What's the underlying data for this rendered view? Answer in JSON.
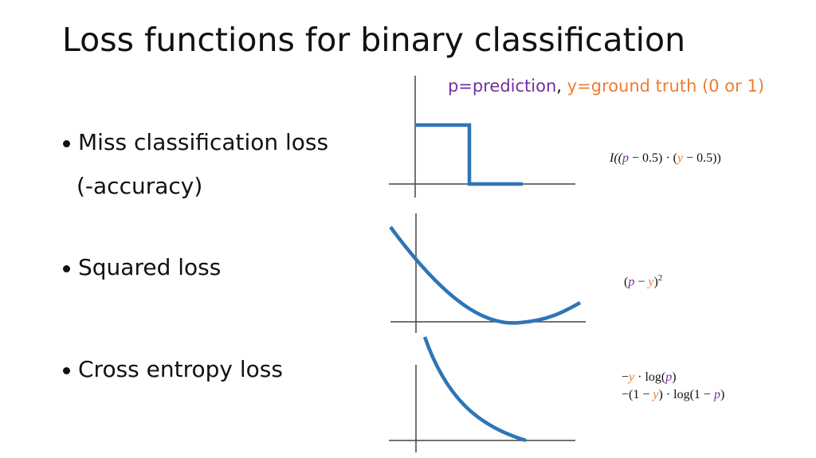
{
  "title": "Loss functions for binary classification",
  "legend": {
    "prediction": "p=prediction",
    "separator": ",",
    "ground_truth": "y=ground truth (0 or 1)"
  },
  "bullets": [
    {
      "lines": [
        "Miss classification loss",
        "(-accuracy)"
      ]
    },
    {
      "lines": [
        "Squared loss"
      ]
    },
    {
      "lines": [
        "Cross entropy loss"
      ]
    }
  ],
  "formulas": [
    {
      "lines": [
        [
          "I((",
          "p",
          " − 0.5) · (",
          "y",
          " − 0.5))"
        ]
      ]
    },
    {
      "lines": [
        [
          "(",
          "p",
          " − ",
          "y",
          ")",
          "2"
        ]
      ]
    },
    {
      "lines": [
        [
          "−",
          "y",
          " · log(",
          "p",
          ")"
        ],
        [
          "−(1 − ",
          "y",
          ") · log(1 − ",
          "p",
          ")"
        ]
      ]
    }
  ]
}
